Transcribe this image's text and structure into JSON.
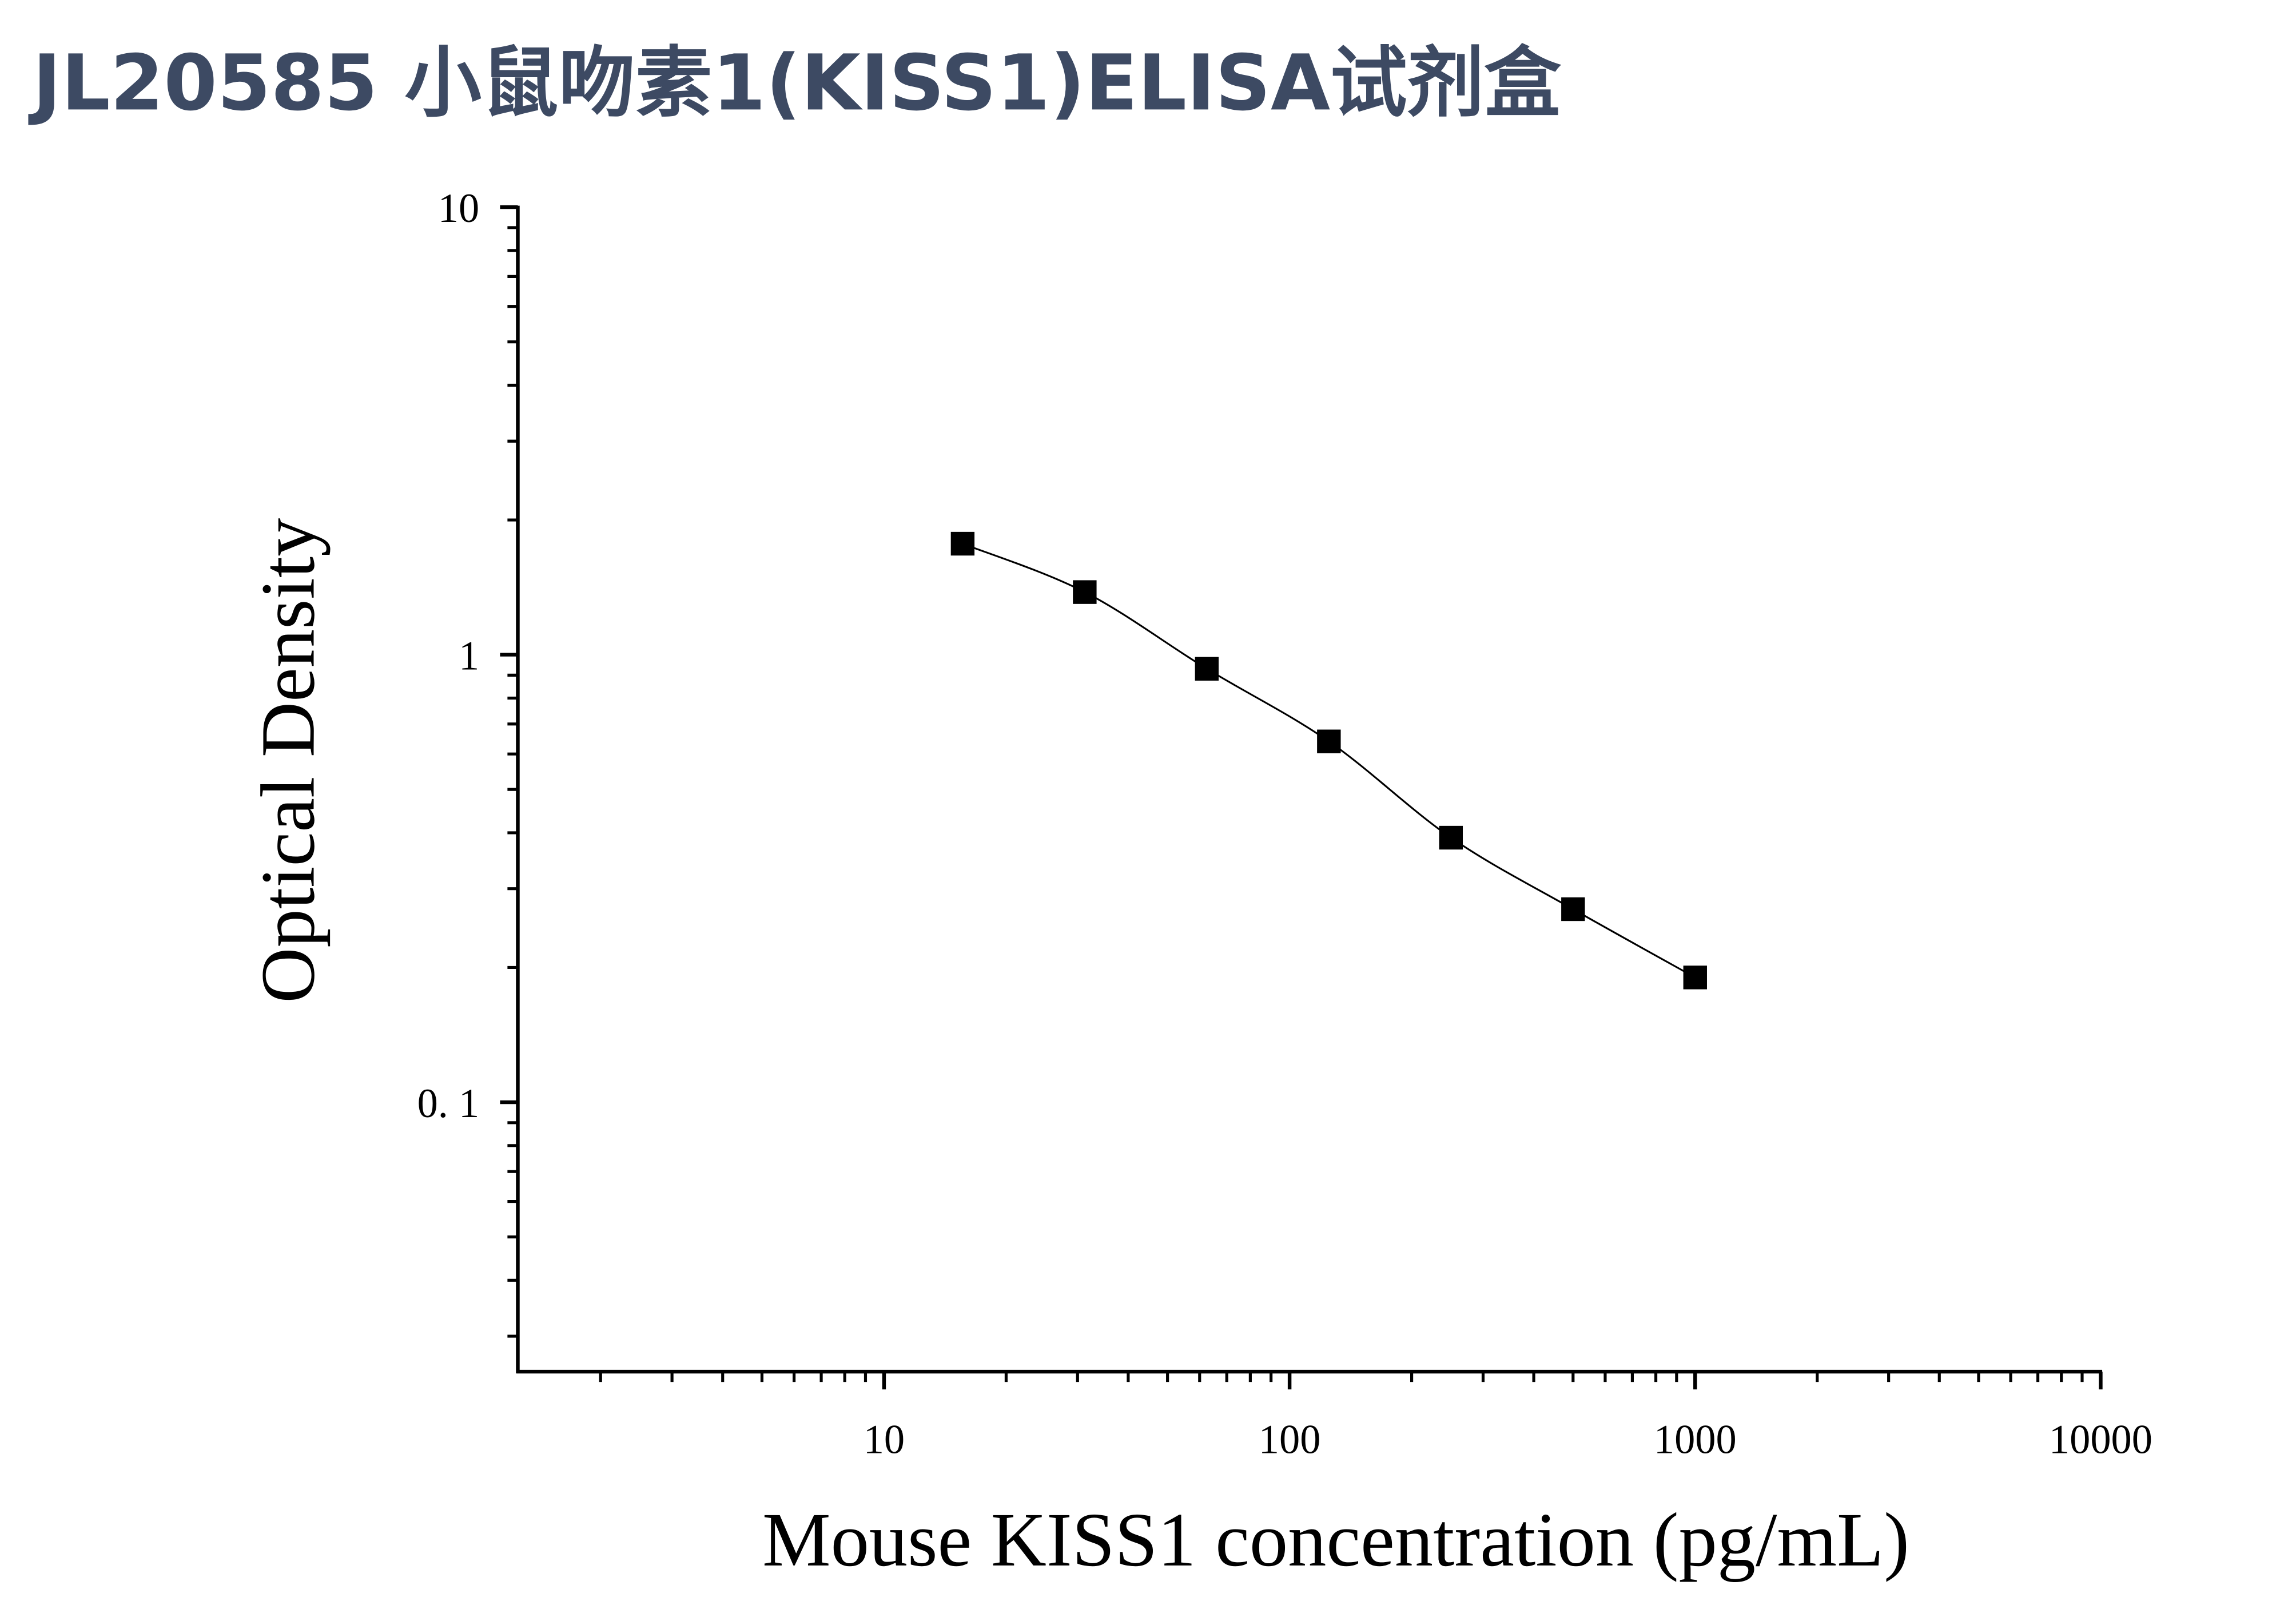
{
  "chart_data": {
    "type": "line",
    "title": "JL20585 小鼠吻素1(KISS1)ELISA试剂盒",
    "x_label": "Mouse KISS1 concentration (pg/mL)",
    "y_label": "Optical Density",
    "x": [
      15.625,
      31.25,
      62.5,
      125,
      250,
      500,
      1000
    ],
    "values": [
      1.77,
      1.38,
      0.93,
      0.64,
      0.39,
      0.27,
      0.19
    ],
    "color": "#000000",
    "x_log": true,
    "y_log": true,
    "xlim": [
      1.25,
      10000
    ],
    "xticks": [
      10,
      100,
      1000,
      10000
    ],
    "xminorticks": [
      2,
      3,
      4,
      5,
      6,
      7,
      8,
      9,
      20,
      30,
      40,
      50,
      60,
      70,
      80,
      90,
      200,
      300,
      400,
      500,
      600,
      700,
      800,
      900,
      2000,
      3000,
      4000,
      5000,
      6000,
      7000,
      8000,
      9000
    ],
    "ylim": [
      0.025,
      10
    ],
    "yticks": [
      {
        "value": 0.1,
        "label": "0. 1"
      },
      1,
      10
    ],
    "yminorticks": [
      0.03,
      0.04,
      0.05,
      0.06,
      0.07,
      0.08,
      0.09,
      0.2,
      0.3,
      0.4,
      0.5,
      0.6,
      0.7,
      0.8,
      0.9,
      2,
      3,
      4,
      5,
      6,
      7,
      8,
      9
    ]
  }
}
